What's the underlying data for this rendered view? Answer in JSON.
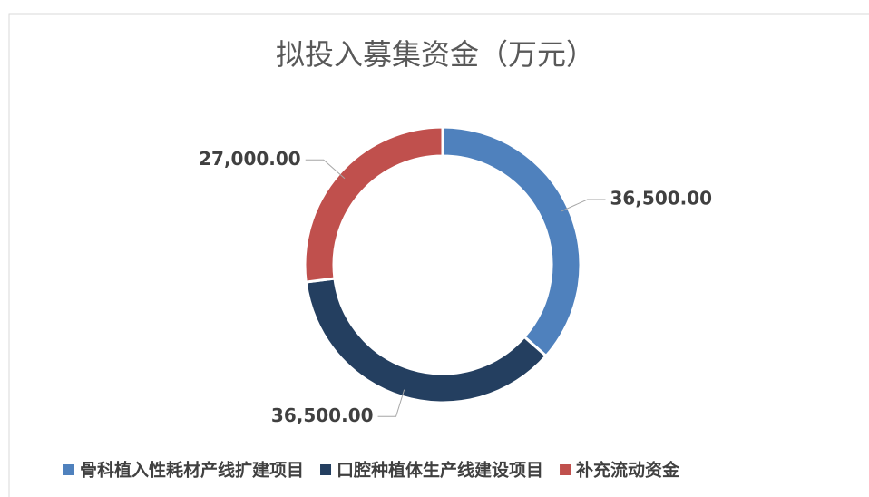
{
  "chart_data": {
    "type": "pie",
    "title": "拟投入募集资金（万元）",
    "categories": [
      "骨科植入性耗材产线扩建项目",
      "口腔种植体生产线建设项目",
      "补充流动资金"
    ],
    "values": [
      36500,
      36500,
      27000
    ],
    "value_labels": [
      "36,500.00",
      "36,500.00",
      "27,000.00"
    ],
    "colors": [
      "#4f81bd",
      "#243f60",
      "#c0504d"
    ],
    "donut": true,
    "legend": "bottom"
  }
}
